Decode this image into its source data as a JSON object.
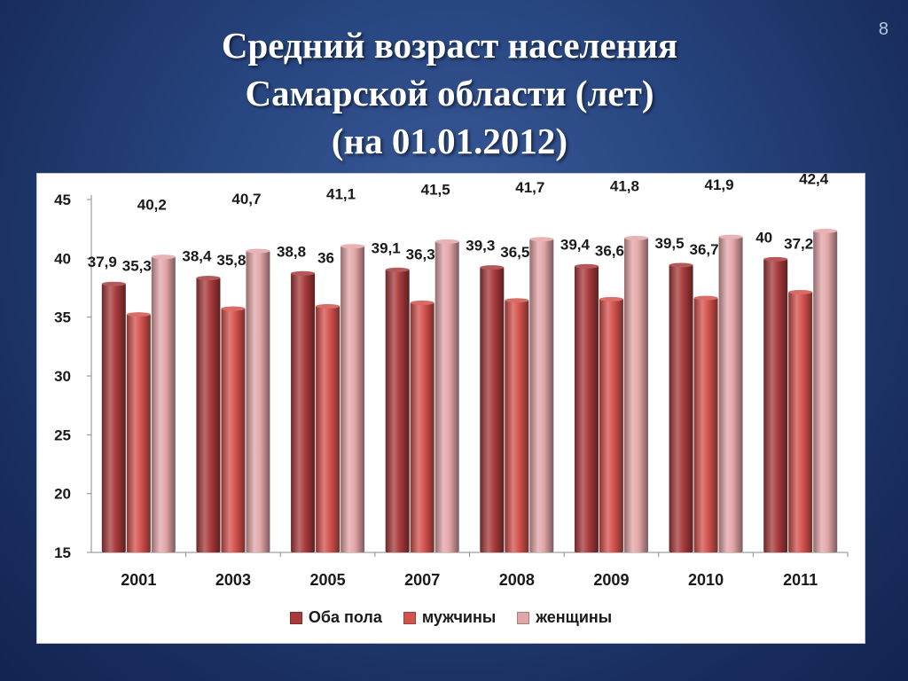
{
  "slide": {
    "number": "8",
    "title_lines": [
      "Средний возраст населения",
      "Самарской области (лет)",
      "(на 01.01.2012)"
    ]
  },
  "chart_data": {
    "type": "bar",
    "categories": [
      "2001",
      "2003",
      "2005",
      "2007",
      "2008",
      "2009",
      "2010",
      "2011"
    ],
    "series": [
      {
        "name": "Оба пола",
        "values": [
          37.9,
          38.4,
          38.8,
          39.1,
          39.3,
          39.4,
          39.5,
          40
        ],
        "labels": [
          "37,9",
          "38,4",
          "38,8",
          "39,1",
          "39,3",
          "39,4",
          "39,5",
          "40"
        ],
        "color": "#a83a3c"
      },
      {
        "name": "мужчины",
        "values": [
          35.3,
          35.8,
          36,
          36.3,
          36.5,
          36.6,
          36.7,
          37.2
        ],
        "labels": [
          "35,3",
          "35,8",
          "36",
          "36,3",
          "36,5",
          "36,6",
          "36,7",
          "37,2"
        ],
        "color": "#d4524d"
      },
      {
        "name": "женщины",
        "values": [
          40.2,
          40.7,
          41.1,
          41.5,
          41.7,
          41.8,
          41.9,
          42.4
        ],
        "labels": [
          "40,2",
          "40,7",
          "41,1",
          "41,5",
          "41,7",
          "41,8",
          "41,9",
          "42,4"
        ],
        "color": "#e3a6a8"
      }
    ],
    "ylim": [
      15,
      45
    ],
    "yticks": [
      "15",
      "20",
      "25",
      "30",
      "35",
      "40",
      "45"
    ],
    "legend_position": "bottom",
    "grid": false
  }
}
